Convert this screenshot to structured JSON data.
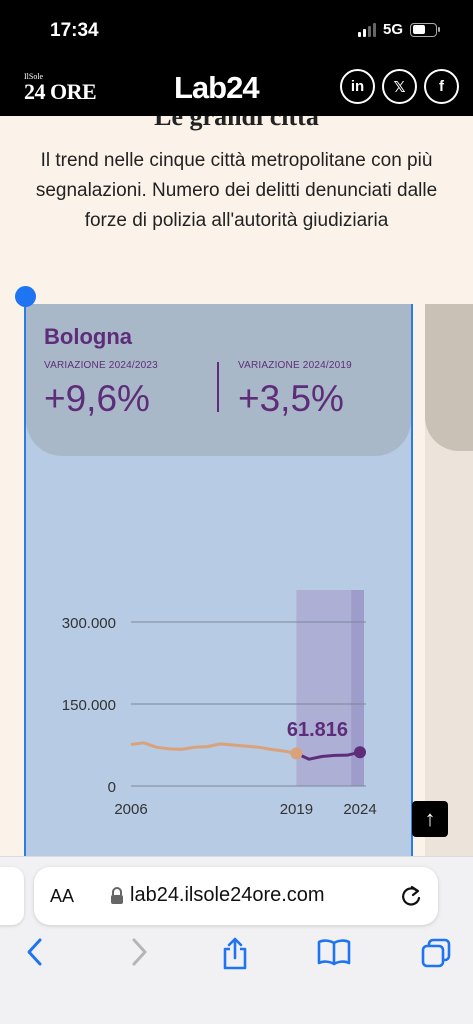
{
  "status": {
    "time": "17:34",
    "network": "5G"
  },
  "header": {
    "brand_small_top": "IlSole",
    "brand_small_main": "24 ORE",
    "brand_main": "Lab24",
    "social": [
      "in",
      "𝕏",
      "f"
    ]
  },
  "article": {
    "title_fragment": "Le grandi città",
    "subtitle": "Il trend nelle cinque città metropolitane con più segnalazioni. Numero dei delitti denunciati dalle forze di polizia all'autorità giudiziaria"
  },
  "card": {
    "city": "Bologna",
    "var1_label": "VARIAZIONE 2024/2023",
    "var1_value": "+9,6%",
    "var2_label": "VARIAZIONE 2024/2019",
    "var2_value": "+3,5%"
  },
  "colors": {
    "accent": "#5e2d79",
    "pre2019": "#d9a27a",
    "card_bg": "#b7cbe4",
    "page_bg": "#fbf3ea"
  },
  "chart_data": {
    "type": "line",
    "title": "Bologna",
    "x": [
      2006,
      2007,
      2008,
      2009,
      2010,
      2011,
      2012,
      2013,
      2014,
      2015,
      2016,
      2017,
      2018,
      2019,
      2020,
      2021,
      2022,
      2023,
      2024
    ],
    "series": [
      {
        "name": "",
        "values": [
          76000,
          79000,
          71000,
          68000,
          67000,
          71000,
          72000,
          77000,
          75000,
          73000,
          71000,
          67000,
          64000,
          59700,
          49000,
          54000,
          56000,
          56400,
          61816
        ]
      }
    ],
    "highlight_value": "61.816",
    "ylim": [
      0,
      330000
    ],
    "yticks": [
      "300.000",
      "150.000",
      "0"
    ],
    "ytick_values": [
      300000,
      150000,
      0
    ],
    "xticks": [
      "2006",
      "2019",
      "2024"
    ],
    "xtick_values": [
      2006,
      2019,
      2024
    ]
  },
  "browser": {
    "aa": "AA",
    "url": "lab24.ilsole24ore.com"
  }
}
